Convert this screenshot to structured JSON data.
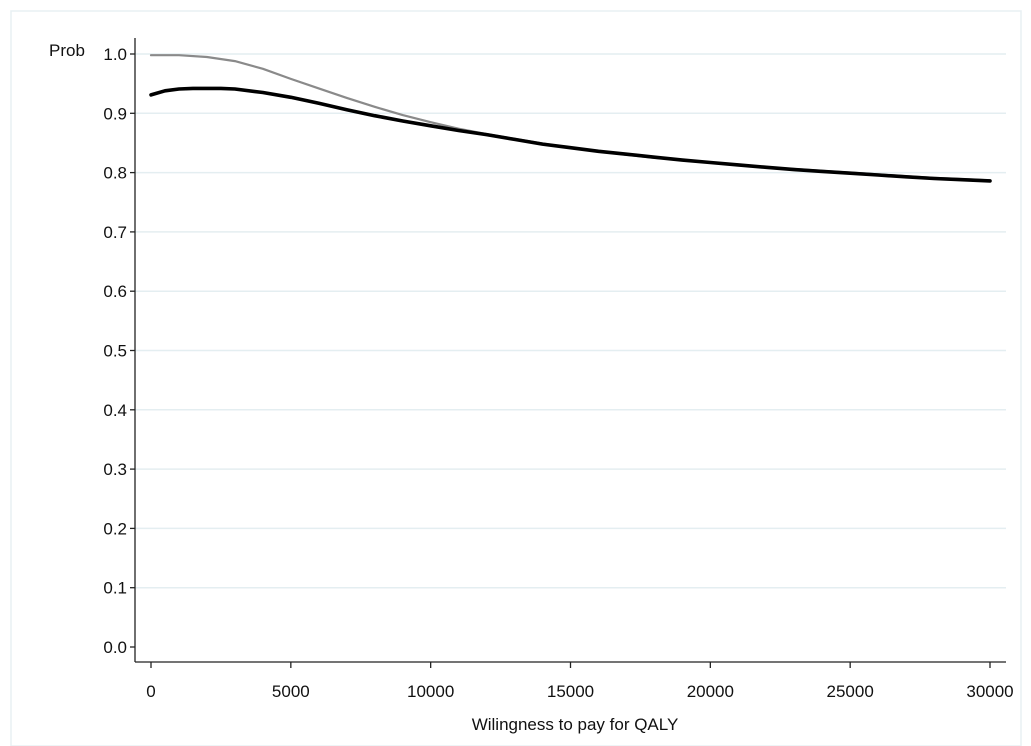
{
  "chart_data": {
    "type": "line",
    "xlabel": "Wilingness to pay for QALY",
    "ylabel": "Prob",
    "xlim": [
      0,
      30000
    ],
    "ylim": [
      0,
      1.0
    ],
    "x_ticks": [
      0,
      5000,
      10000,
      15000,
      20000,
      25000,
      30000
    ],
    "x_tick_labels": [
      "0",
      "5000",
      "10000",
      "15000",
      "20000",
      "25000",
      "30000"
    ],
    "y_ticks": [
      0,
      0.1,
      0.2,
      0.3,
      0.4,
      0.5,
      0.6,
      0.7,
      0.8,
      0.9,
      1.0
    ],
    "y_tick_labels": [
      "0.0",
      "0.1",
      "0.2",
      "0.3",
      "0.4",
      "0.5",
      "0.6",
      "0.7",
      "0.8",
      "0.9",
      "1.0"
    ],
    "grid": true,
    "legend": "none",
    "series": [
      {
        "color": "#8a8a8a",
        "x": [
          0,
          1000,
          2000,
          3000,
          4000,
          5000,
          6000,
          7000,
          8000,
          9000,
          10000,
          11000,
          12000,
          13000,
          14000,
          15000,
          16000,
          17000,
          18000,
          19000,
          20000,
          21000,
          22000,
          23000,
          24000,
          25000,
          26000,
          27000,
          28000,
          29000,
          30000
        ],
        "y": [
          0.998,
          0.998,
          0.995,
          0.988,
          0.975,
          0.958,
          0.942,
          0.926,
          0.911,
          0.897,
          0.885,
          0.874,
          0.865,
          0.857,
          0.849,
          0.842,
          0.836,
          0.83,
          0.825,
          0.821,
          0.817,
          0.813,
          0.809,
          0.806,
          0.803,
          0.8,
          0.797,
          0.794,
          0.791,
          0.789,
          0.787
        ]
      },
      {
        "color": "#000000",
        "x": [
          0,
          500,
          1000,
          1500,
          2000,
          2500,
          3000,
          4000,
          5000,
          6000,
          7000,
          8000,
          9000,
          10000,
          11000,
          12000,
          13000,
          14000,
          15000,
          16000,
          17000,
          18000,
          19000,
          20000,
          21000,
          22000,
          23000,
          24000,
          25000,
          26000,
          27000,
          28000,
          29000,
          30000
        ],
        "y": [
          0.931,
          0.938,
          0.941,
          0.942,
          0.942,
          0.942,
          0.941,
          0.935,
          0.927,
          0.917,
          0.906,
          0.896,
          0.887,
          0.879,
          0.871,
          0.864,
          0.856,
          0.848,
          0.842,
          0.836,
          0.831,
          0.826,
          0.821,
          0.817,
          0.813,
          0.809,
          0.805,
          0.802,
          0.799,
          0.796,
          0.793,
          0.79,
          0.788,
          0.786
        ]
      }
    ]
  }
}
